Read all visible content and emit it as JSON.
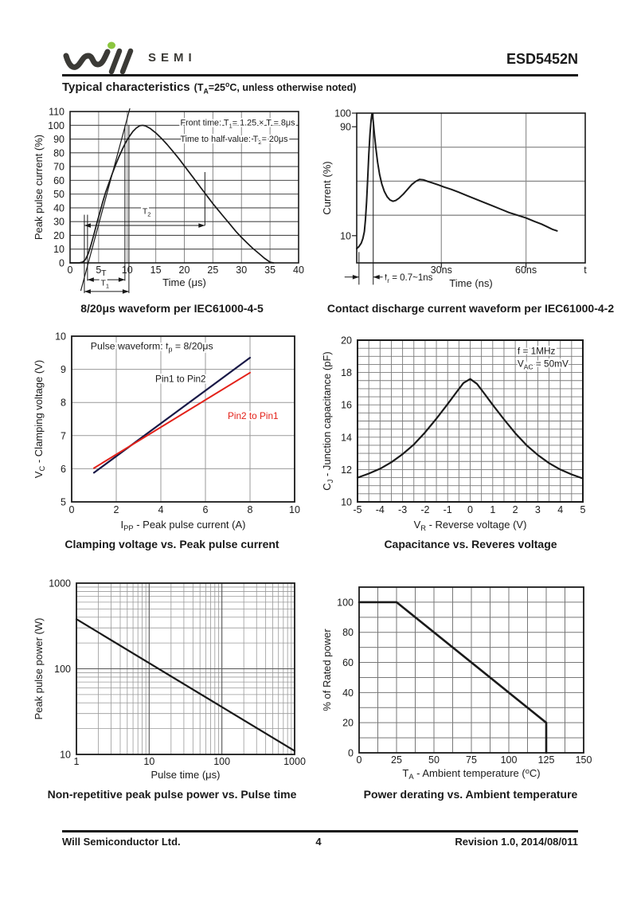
{
  "header": {
    "logo": {
      "brand": "Will Semi",
      "semi_text": "SEMI",
      "mark_color": "#3b3a36",
      "dot_color": "#8cc63f"
    },
    "part_number": "ESD5452N",
    "section_title": "Typical characteristics",
    "section_condition": "(T{sub:A}=25{sup:o}C, unless otherwise noted)"
  },
  "footer": {
    "company": "Will Semiconductor Ltd.",
    "page_number": "4",
    "revision": "Revision 1.0, 2014/08/011"
  },
  "chart_data": [
    {
      "type": "line",
      "caption": "8/20μs waveform per IEC61000-4-5",
      "x": {
        "label": "Time (μs)",
        "min": 0,
        "max": 40,
        "scale": "linear",
        "ticks": [
          0,
          5,
          10,
          15,
          20,
          25,
          30,
          35,
          40
        ],
        "grid": [
          5,
          10,
          15,
          20,
          25,
          30,
          35
        ]
      },
      "y": {
        "label": "Peak pulse current (%)",
        "min": 0,
        "max": 110,
        "scale": "linear",
        "ticks": [
          0,
          10,
          20,
          30,
          40,
          50,
          60,
          70,
          80,
          90,
          100,
          110
        ],
        "grid": [
          10,
          20,
          30,
          40,
          50,
          60,
          70,
          80,
          90,
          100
        ]
      },
      "series": [
        {
          "name": "surge waveform",
          "color": "#1a1a1a",
          "width": 1.7,
          "points": [
            [
              0,
              0
            ],
            [
              1.6,
              0
            ],
            [
              2.2,
              0.6
            ],
            [
              2.7,
              2.5
            ],
            [
              3.2,
              7
            ],
            [
              3.7,
              13.5
            ],
            [
              4.2,
              21
            ],
            [
              4.7,
              29
            ],
            [
              5.2,
              36.5
            ],
            [
              5.7,
              44
            ],
            [
              6.2,
              51
            ],
            [
              6.8,
              58
            ],
            [
              7.4,
              65
            ],
            [
              8,
              71.5
            ],
            [
              8.6,
              77.5
            ],
            [
              9.2,
              83
            ],
            [
              9.8,
              88
            ],
            [
              10.4,
              92
            ],
            [
              11,
              95.5
            ],
            [
              11.6,
              98
            ],
            [
              12.2,
              99.7
            ],
            [
              12.7,
              100
            ],
            [
              13.2,
              99.6
            ],
            [
              14,
              97.8
            ],
            [
              15,
              94.5
            ],
            [
              16,
              90.5
            ],
            [
              17,
              86
            ],
            [
              18,
              81
            ],
            [
              19,
              76
            ],
            [
              20,
              70.5
            ],
            [
              21,
              65
            ],
            [
              22,
              59.5
            ],
            [
              23,
              54
            ],
            [
              24,
              48.5
            ],
            [
              25,
              43
            ],
            [
              26,
              38
            ],
            [
              27,
              33
            ],
            [
              28,
              28
            ],
            [
              29,
              23
            ],
            [
              30,
              18.5
            ],
            [
              31,
              14.5
            ],
            [
              32,
              10.5
            ],
            [
              33,
              7
            ],
            [
              34,
              3.5
            ],
            [
              35,
              0.5
            ],
            [
              35.6,
              0
            ]
          ]
        },
        {
          "name": "front-time tangent",
          "color": "#1a1a1a",
          "width": 1.2,
          "points": [
            [
              1.9,
              -20
            ],
            [
              10.45,
              112
            ]
          ]
        }
      ],
      "annotations": [
        {
          "text": "Front time: T{sub:1}= 1.25 × T = 8μs",
          "x": 19.3,
          "y": 100,
          "anchor": "start",
          "size": 10.8
        },
        {
          "text": "Time to half-value: T{sub:2}= 20μs",
          "x": 19.3,
          "y": 88,
          "anchor": "start",
          "size": 10.8
        }
      ],
      "vlines": [
        {
          "x": 2.5,
          "y1": 35,
          "y2": -22
        },
        {
          "x": 3.05,
          "y1": 35,
          "y2": -13
        },
        {
          "x": 9.6,
          "y1": 100,
          "y2": -13
        },
        {
          "x": 10.3,
          "y1": 100,
          "y2": -22
        },
        {
          "x": 23.6,
          "y1": 27.2,
          "y2": 66
        }
      ],
      "harrows": [
        {
          "y": -12.2,
          "x1": 3.05,
          "x2": 9.6,
          "heads": "both",
          "label": "T",
          "lx": 5.9,
          "ly": -9.3
        },
        {
          "y": -20.8,
          "x1": 2.5,
          "x2": 10.3,
          "heads": "both",
          "label": "T{sub:1}",
          "lx": 6.1,
          "ly": -16.5
        },
        {
          "y": 27.2,
          "x1": 2.5,
          "x2": 23.6,
          "heads": "both",
          "label": "T{sub:2}",
          "lx": 13.4,
          "ly": 35.5
        }
      ]
    },
    {
      "type": "line",
      "caption": "Contact discharge current waveform per IEC61000-4-2",
      "x": {
        "label": "Time (ns)",
        "min": 0,
        "max": 81,
        "scale": "linear",
        "ticks": [
          [
            30,
            "30ns"
          ],
          [
            60,
            "60ns"
          ],
          [
            81,
            "t"
          ]
        ],
        "grid": [
          30,
          60
        ],
        "tickmarks": [
          30,
          60
        ]
      },
      "y": {
        "label": "Current (%)",
        "min": -10,
        "max": 100,
        "scale": "linear",
        "ticks": [
          100,
          90,
          10
        ],
        "grid": [
          25,
          50,
          75
        ],
        "tickmarks": [
          100,
          90,
          10
        ]
      },
      "series": [
        {
          "name": "ESD discharge current",
          "color": "#1a1a1a",
          "width": 2,
          "points": [
            [
              0,
              0.5
            ],
            [
              0.8,
              2
            ],
            [
              1.6,
              4.5
            ],
            [
              2.2,
              8
            ],
            [
              2.7,
              13
            ],
            [
              3.1,
              22
            ],
            [
              3.5,
              35
            ],
            [
              3.9,
              52
            ],
            [
              4.3,
              70
            ],
            [
              4.7,
              85
            ],
            [
              5.1,
              95
            ],
            [
              5.4,
              99.5
            ],
            [
              5.6,
              99
            ],
            [
              5.9,
              93
            ],
            [
              6.3,
              84
            ],
            [
              6.8,
              74
            ],
            [
              7.4,
              64
            ],
            [
              8.1,
              55
            ],
            [
              8.9,
              48
            ],
            [
              9.8,
              42.5
            ],
            [
              10.8,
              38.5
            ],
            [
              11.8,
              36.2
            ],
            [
              12.8,
              35.3
            ],
            [
              13.8,
              35.8
            ],
            [
              15,
              37.5
            ],
            [
              16.5,
              40.5
            ],
            [
              18,
              44
            ],
            [
              19.5,
              47.5
            ],
            [
              21,
              50
            ],
            [
              22.3,
              51.3
            ],
            [
              23.6,
              51
            ],
            [
              25,
              50
            ],
            [
              27,
              48.6
            ],
            [
              29,
              47.2
            ],
            [
              31,
              45.7
            ],
            [
              33.5,
              44
            ],
            [
              36,
              42
            ],
            [
              39,
              39.5
            ],
            [
              42,
              37
            ],
            [
              45,
              34.5
            ],
            [
              48,
              32
            ],
            [
              51,
              29.5
            ],
            [
              54,
              27
            ],
            [
              57,
              25
            ],
            [
              60,
              23
            ],
            [
              63,
              20.5
            ],
            [
              65.5,
              18.5
            ],
            [
              67.5,
              16.5
            ],
            [
              69.5,
              14.5
            ],
            [
              71,
              13.5
            ]
          ]
        }
      ],
      "annotations": [
        {
          "text": "t{sub:r} = 0.7~1ns",
          "x": 9.9,
          "y": -23,
          "anchor": "start",
          "size": 11.5
        }
      ],
      "vlines": [
        {
          "x": 0.8,
          "y1": -2,
          "y2": -26
        },
        {
          "x": 5.85,
          "y1": 100,
          "y2": -26
        }
      ],
      "harrows": [
        {
          "y": -20.4,
          "x1": -4.3,
          "x2": 0.8,
          "heads": "end"
        },
        {
          "y": -20.4,
          "x1": 9.2,
          "x2": 5.85,
          "heads": "end"
        }
      ]
    },
    {
      "type": "line",
      "caption": "Clamping voltage vs. Peak pulse current",
      "x": {
        "label": "I{sub:PP} - Peak pulse current (A)",
        "min": 0,
        "max": 10,
        "scale": "linear",
        "ticks": [
          0,
          2,
          4,
          6,
          8,
          10
        ],
        "grid": [
          2,
          4,
          6,
          8
        ]
      },
      "y": {
        "label": "V{sub:C} - Clamping voltage (V)",
        "min": 5,
        "max": 10,
        "scale": "linear",
        "ticks": [
          5,
          6,
          7,
          8,
          9,
          10
        ],
        "grid": [
          6,
          7,
          8,
          9
        ]
      },
      "series": [
        {
          "name": "Pin1 to Pin2",
          "color": "#191947",
          "width": 2.2,
          "points": [
            [
              1,
              5.88
            ],
            [
              8,
              9.35
            ]
          ]
        },
        {
          "name": "Pin2 to Pin1",
          "color": "#e32119",
          "width": 2.0,
          "points": [
            [
              1,
              6.02
            ],
            [
              8,
              8.9
            ]
          ]
        }
      ],
      "annotations": [
        {
          "text": "Pulse waveform: t{sub:p} = 8/20μs",
          "x": 0.85,
          "y": 9.6,
          "anchor": "start",
          "size": 12.3
        },
        {
          "text": "Pin1 to Pin2",
          "x": 3.75,
          "y": 8.62,
          "anchor": "start",
          "size": 11.8
        },
        {
          "text": "Pin2 to Pin1",
          "x": 7.0,
          "y": 7.5,
          "anchor": "start",
          "size": 11.8,
          "color": "#e32119"
        }
      ],
      "vlines": [],
      "harrows": []
    },
    {
      "type": "line",
      "caption": "Capacitance vs. Reveres voltage",
      "x": {
        "label": "V{sub:R} - Reverse voltage (V)",
        "min": -5,
        "max": 5,
        "scale": "linear",
        "ticks": [
          -5,
          -4,
          -3,
          -2,
          -1,
          0,
          1,
          2,
          3,
          4,
          5
        ],
        "grid": {
          "step": 0.5
        }
      },
      "y": {
        "label": "C{sub:J} - Junction capacitance (pF)",
        "min": 10,
        "max": 20,
        "scale": "linear",
        "ticks": [
          10,
          12,
          14,
          16,
          18,
          20
        ],
        "grid": {
          "step": 0.5
        }
      },
      "series": [
        {
          "name": "junction capacitance",
          "color": "#1a1a1a",
          "width": 2.2,
          "points": [
            [
              -5,
              11.5
            ],
            [
              -4.5,
              11.75
            ],
            [
              -4,
              12.05
            ],
            [
              -3.5,
              12.45
            ],
            [
              -3,
              12.95
            ],
            [
              -2.5,
              13.55
            ],
            [
              -2,
              14.3
            ],
            [
              -1.5,
              15.15
            ],
            [
              -1,
              16.05
            ],
            [
              -0.6,
              16.8
            ],
            [
              -0.3,
              17.35
            ],
            [
              0,
              17.6
            ],
            [
              0.3,
              17.3
            ],
            [
              0.6,
              16.75
            ],
            [
              1,
              16.0
            ],
            [
              1.5,
              15.1
            ],
            [
              2,
              14.25
            ],
            [
              2.5,
              13.5
            ],
            [
              3,
              12.9
            ],
            [
              3.5,
              12.4
            ],
            [
              4,
              12.0
            ],
            [
              4.5,
              11.7
            ],
            [
              5,
              11.45
            ]
          ]
        }
      ],
      "annotations": [
        {
          "text": "f = 1MHz",
          "x": 2.1,
          "y": 19.15,
          "anchor": "start",
          "size": 11.8
        },
        {
          "text": "V{sub:AC} = 50mV",
          "x": 2.1,
          "y": 18.35,
          "anchor": "start",
          "size": 11.8
        }
      ],
      "vlines": [],
      "harrows": []
    },
    {
      "type": "line",
      "caption": "Non-repetitive peak pulse power vs. Pulse time",
      "x": {
        "label": "Pulse time (μs)",
        "min": 1,
        "max": 1000,
        "scale": "log",
        "ticks": [
          1,
          10,
          100,
          1000
        ],
        "grid": "log-auto"
      },
      "y": {
        "label": "Peak pulse power (W)",
        "min": 10,
        "max": 1000,
        "scale": "log",
        "ticks": [
          10,
          100,
          1000
        ],
        "grid": "log-auto"
      },
      "series": [
        {
          "name": "peak pulse power",
          "color": "#1a1a1a",
          "width": 2.2,
          "points": [
            [
              1,
              380
            ],
            [
              1000,
              11
            ]
          ]
        }
      ],
      "annotations": [],
      "vlines": [],
      "harrows": []
    },
    {
      "type": "line",
      "caption": "Power derating vs. Ambient temperature",
      "x": {
        "label": "T{sub:A} - Ambient temperature ({sup:o}C)",
        "min": 0,
        "max": 150,
        "scale": "linear",
        "ticks": [
          0,
          25,
          50,
          75,
          100,
          125,
          150
        ],
        "grid": {
          "step": 12.5
        }
      },
      "y": {
        "label": "% of Rated power",
        "min": 0,
        "max": 110,
        "scale": "linear",
        "ticks": [
          0,
          20,
          40,
          60,
          80,
          100
        ],
        "grid": {
          "step": 10
        }
      },
      "series": [
        {
          "name": "derating curve",
          "color": "#1a1a1a",
          "width": 2.6,
          "points": [
            [
              0,
              100
            ],
            [
              25,
              100
            ],
            [
              125,
              20
            ],
            [
              125,
              0
            ]
          ]
        }
      ],
      "annotations": [],
      "vlines": [],
      "harrows": []
    }
  ]
}
